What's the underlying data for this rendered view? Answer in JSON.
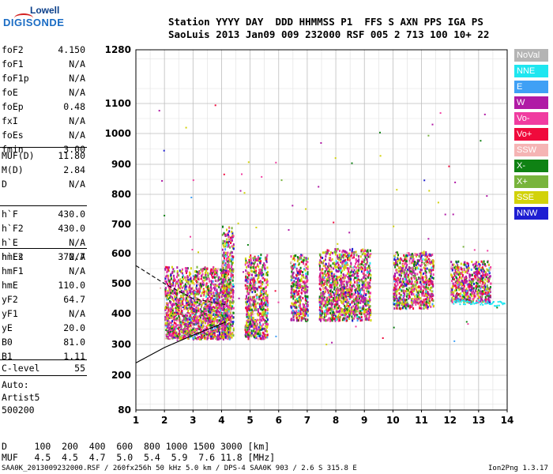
{
  "logo": {
    "top": "Lowell",
    "bottom": "DIGISONDE"
  },
  "header": {
    "line1": "Station YYYY DAY  DDD HHMMSS P1  FFS S AXN PPS IGA PS",
    "line2": "SaoLuis 2013 Jan09 009 232000 RSF 005 2 713 100 10+ 22"
  },
  "scaled": {
    "group1": [
      {
        "label": "foF2",
        "value": "4.150"
      },
      {
        "label": "foF1",
        "value": "N/A"
      },
      {
        "label": "foF1p",
        "value": "N/A"
      },
      {
        "label": "foE",
        "value": "N/A"
      },
      {
        "label": "foEp",
        "value": "0.48"
      },
      {
        "label": "fxI",
        "value": "N/A"
      },
      {
        "label": "foEs",
        "value": "N/A"
      },
      {
        "label": "fmin",
        "value": "3.00"
      }
    ],
    "group2": [
      {
        "label": "MUF(D)",
        "value": "11.80"
      },
      {
        "label": "M(D)",
        "value": "2.84"
      },
      {
        "label": "D",
        "value": "N/A"
      }
    ],
    "group3": [
      {
        "label": "h`F",
        "value": "430.0"
      },
      {
        "label": "h`F2",
        "value": "430.0"
      },
      {
        "label": "h`E",
        "value": "N/A"
      },
      {
        "label": "h`Es",
        "value": "N/A"
      }
    ],
    "group4": [
      {
        "label": "hmF2",
        "value": "372.7"
      },
      {
        "label": "hmF1",
        "value": "N/A"
      },
      {
        "label": "hmE",
        "value": "110.0"
      },
      {
        "label": "yF2",
        "value": "64.7"
      },
      {
        "label": "yF1",
        "value": "N/A"
      },
      {
        "label": "yE",
        "value": "20.0"
      },
      {
        "label": "B0",
        "value": "81.0"
      },
      {
        "label": "B1",
        "value": "1.11"
      }
    ],
    "clevel": {
      "label": "C-level",
      "value": "55"
    },
    "auto": [
      "Auto:",
      "Artist5",
      "500200"
    ]
  },
  "legend": [
    {
      "label": "NoVal",
      "color": "#b4b4b4"
    },
    {
      "label": "NNE",
      "color": "#1ee6f0"
    },
    {
      "label": "E",
      "color": "#3fa0f5"
    },
    {
      "label": "W",
      "color": "#b01aa5"
    },
    {
      "label": "Vo-",
      "color": "#f03ca0"
    },
    {
      "label": "Vo+",
      "color": "#f00a3c"
    },
    {
      "label": "SSW",
      "color": "#f5b4b4"
    },
    {
      "label": "X-",
      "color": "#0f8214"
    },
    {
      "label": "X+",
      "color": "#78b43c"
    },
    {
      "label": "SSE",
      "color": "#d2d20a"
    },
    {
      "label": "NNW",
      "color": "#1e1ed2"
    }
  ],
  "muf_table": {
    "d_line": "D     100  200  400  600  800 1000 1500 3000 [km]",
    "muf_line": "MUF   4.5  4.5  4.7  5.0  5.4  5.9  7.6 11.8 [MHz]"
  },
  "footer": {
    "left": "SAA0K_2013009232000.RSF / 260fx256h 50 kHz 5.0 km / DPS-4 SAA0K 903 / 2.6 S 315.8 E",
    "right": "Ion2Png 1.3.17"
  },
  "chart_data": {
    "type": "scatter",
    "title": "",
    "xlabel": "",
    "ylabel": "",
    "xlim": [
      1,
      14
    ],
    "ylim": [
      80,
      1280
    ],
    "x_ticks": [
      1,
      2,
      3,
      4,
      5,
      6,
      7,
      8,
      9,
      10,
      11,
      12,
      13,
      14
    ],
    "y_ticks": [
      80,
      200,
      300,
      400,
      500,
      600,
      700,
      800,
      900,
      1000,
      1100,
      1280
    ],
    "y_scale": "nonlinear (ionogram virtual height)",
    "grid": true,
    "legend_placement": "right",
    "series": [
      {
        "name": "Echo clusters (freq MHz, virtual height km)",
        "clusters": [
          {
            "x_range": [
              2.0,
              4.3
            ],
            "y_range": [
              320,
              560
            ]
          },
          {
            "x_range": [
              4.0,
              4.4
            ],
            "y_range": [
              320,
              700
            ]
          },
          {
            "x_range": [
              4.8,
              5.6
            ],
            "y_range": [
              320,
              600
            ]
          },
          {
            "x_range": [
              6.4,
              7.0
            ],
            "y_range": [
              380,
              600
            ]
          },
          {
            "x_range": [
              7.4,
              9.2
            ],
            "y_range": [
              380,
              620
            ]
          },
          {
            "x_range": [
              10.0,
              11.4
            ],
            "y_range": [
              420,
              610
            ]
          },
          {
            "x_range": [
              12.0,
              13.4
            ],
            "y_range": [
              440,
              580
            ]
          }
        ]
      },
      {
        "name": "NNE trace",
        "points": [
          [
            12.1,
            440
          ],
          [
            12.5,
            440
          ],
          [
            13.0,
            440
          ],
          [
            13.5,
            435
          ],
          [
            13.9,
            435
          ]
        ]
      }
    ],
    "profile_line": {
      "name": "Electron density profile",
      "points": [
        [
          1.0,
          240
        ],
        [
          2.0,
          290
        ],
        [
          3.0,
          330
        ],
        [
          4.15,
          372.7
        ]
      ],
      "upper_points": [
        [
          1.0,
          560
        ],
        [
          2.0,
          500
        ],
        [
          3.0,
          450
        ],
        [
          4.15,
          430
        ]
      ]
    }
  }
}
